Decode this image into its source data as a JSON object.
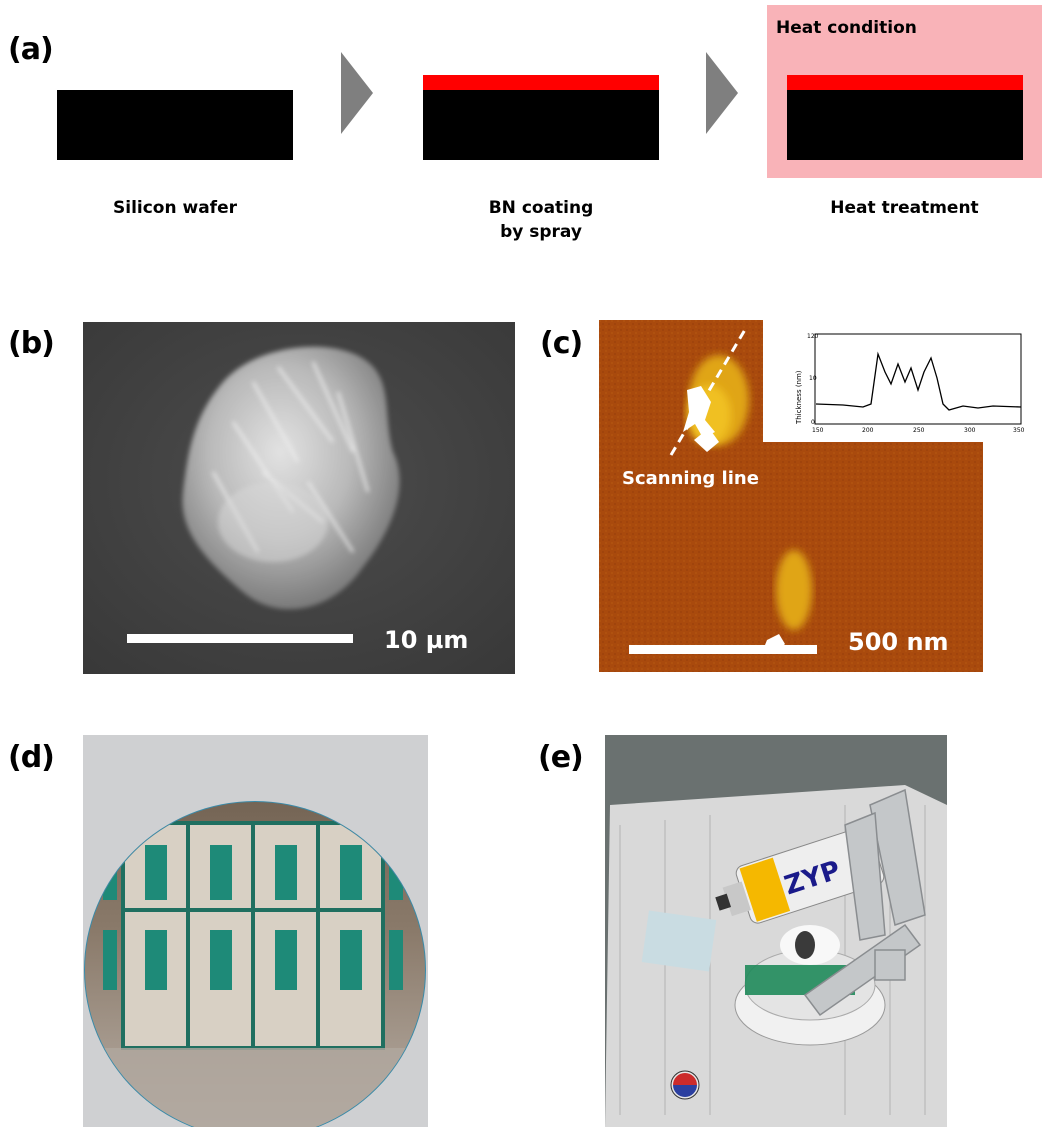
{
  "panel_a": {
    "label": "(a)",
    "step1_caption": "Silicon wafer",
    "step2_caption_line1": "BN coating",
    "step2_caption_line2": "by spray",
    "step3_caption": "Heat treatment",
    "heat_box_title": "Heat condition",
    "colors": {
      "substrate": "#000000",
      "bn_layer": "#ff0000",
      "heat_zone": "#f9b3b8",
      "arrow": "#7f7f7f"
    }
  },
  "panel_b": {
    "label": "(b)",
    "scale_label": "10 µm"
  },
  "panel_c": {
    "label": "(c)",
    "annotation": "Scanning line",
    "scale_label": "500 nm",
    "inset_ylabel": "Thickness (nm)",
    "inset_yticks": [
      "0",
      "10",
      "120"
    ],
    "inset_xticks": [
      "150",
      "200",
      "250",
      "300",
      "350"
    ]
  },
  "panel_d": {
    "label": "(d)"
  },
  "panel_e": {
    "label": "(e)",
    "can_brand": "ZYP"
  }
}
